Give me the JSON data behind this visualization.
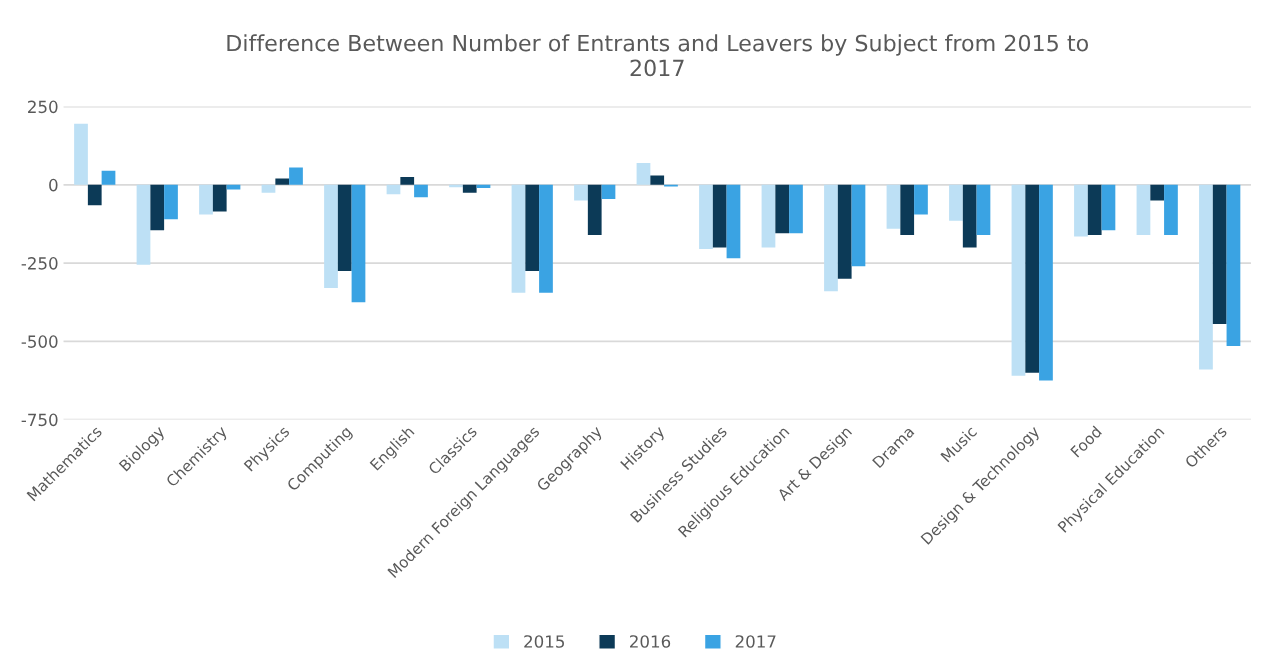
{
  "chart_data": {
    "type": "bar",
    "title": "Difference Between Number of Entrants and Leavers by Subject from 2015 to\n2017",
    "categories": [
      "Mathematics",
      "Biology",
      "Chemistry",
      "Physics",
      "Computing",
      "English",
      "Classics",
      "Modern Foreign Languages",
      "Geography",
      "History",
      "Business Studies",
      "Religious Education",
      "Art & Design",
      "Drama",
      "Music",
      "Design & Technology",
      "Food",
      "Physical Education",
      "Others"
    ],
    "series": [
      {
        "name": "2015",
        "color": "#bde0f5",
        "values": [
          195,
          -255,
          -95,
          -25,
          -330,
          -30,
          -8,
          -345,
          -50,
          70,
          -205,
          -200,
          -340,
          -140,
          -115,
          -610,
          -165,
          -160,
          -590
        ]
      },
      {
        "name": "2016",
        "color": "#0c3a57",
        "values": [
          -65,
          -145,
          -85,
          20,
          -275,
          25,
          -25,
          -275,
          -160,
          30,
          -200,
          -155,
          -300,
          -160,
          -200,
          -600,
          -160,
          -50,
          -445
        ]
      },
      {
        "name": "2017",
        "color": "#3aa3e3",
        "values": [
          45,
          -110,
          -15,
          55,
          -375,
          -40,
          -10,
          -345,
          -45,
          -5,
          -235,
          -155,
          -260,
          -95,
          -160,
          -625,
          -145,
          -160,
          -515
        ]
      }
    ],
    "ylim": [
      -750,
      250
    ],
    "yticks": [
      {
        "value": -750,
        "label": "-750"
      },
      {
        "value": -500,
        "label": "-500"
      },
      {
        "value": -250,
        "label": "-250"
      },
      0,
      250
    ],
    "grid": "y",
    "legend": "bottom"
  }
}
